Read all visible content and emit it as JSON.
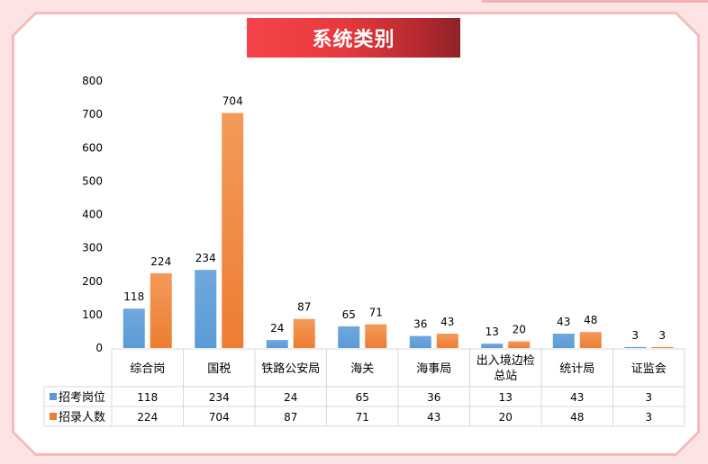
{
  "title": "系统类别",
  "colors": {
    "series1": "#5b9bd5",
    "series2": "#ed7d31",
    "grid": "#d9d9d9",
    "text": "#000000"
  },
  "chart_data": {
    "type": "bar",
    "title": "系统类别",
    "categories": [
      "综合岗",
      "国税",
      "铁路公安局",
      "海关",
      "海事局",
      "出入境边检总站",
      "统计局",
      "证监会"
    ],
    "category_lines": [
      [
        "综合岗"
      ],
      [
        "国税"
      ],
      [
        "铁路公安局"
      ],
      [
        "海关"
      ],
      [
        "海事局"
      ],
      [
        "出入境边检",
        "总站"
      ],
      [
        "统计局"
      ],
      [
        "证监会"
      ]
    ],
    "series": [
      {
        "name": "招考岗位",
        "values": [
          118,
          234,
          24,
          65,
          36,
          13,
          43,
          3
        ]
      },
      {
        "name": "招录人数",
        "values": [
          224,
          704,
          87,
          71,
          43,
          20,
          48,
          3
        ]
      }
    ],
    "ylim": [
      0,
      800
    ],
    "yticks": [
      0,
      100,
      200,
      300,
      400,
      500,
      600,
      700,
      800
    ],
    "grid": false,
    "legend": "data-table"
  }
}
